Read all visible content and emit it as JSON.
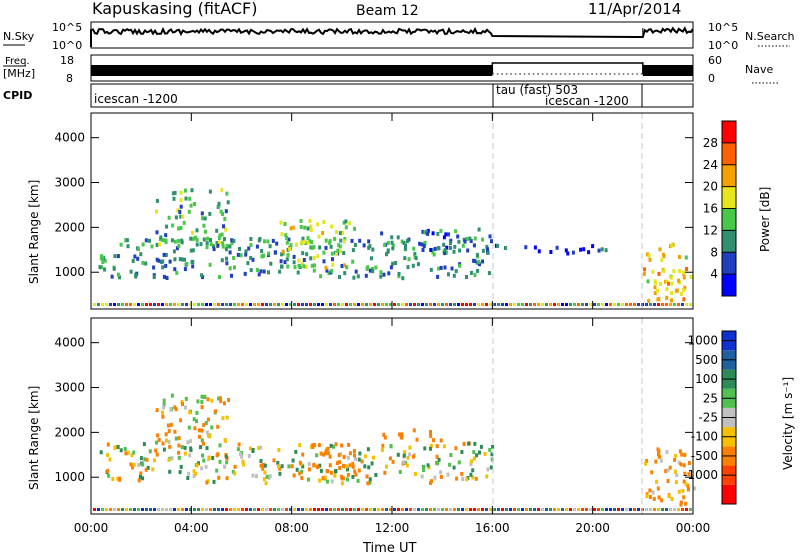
{
  "header": {
    "station": "Kapuskasing (fitACF)",
    "beam": "Beam 12",
    "date": "11/Apr/2014"
  },
  "nsky_panel": {
    "left_label": "N.Sky",
    "left_ticks": [
      "10^5",
      "10^0"
    ],
    "right_ticks": [
      "10^5",
      "10^0"
    ],
    "right_label": "N.Search"
  },
  "freq_panel": {
    "left_label_1": "Freq.",
    "left_label_2": "[MHz]",
    "left_ticks": [
      "18",
      "8"
    ],
    "right_ticks": [
      "60",
      "0"
    ],
    "right_label": "Nave"
  },
  "cpid_panel": {
    "label": "CPID",
    "segments": [
      {
        "text": "icescan -1200",
        "start": "00:00",
        "end": "16:00"
      },
      {
        "text": "tau (fast) 503",
        "start": "16:00",
        "end": "22:00"
      },
      {
        "text": "icescan -1200",
        "start": "16:00",
        "end": "22:00"
      }
    ]
  },
  "x_axis": {
    "ticks": [
      "00:00",
      "04:00",
      "08:00",
      "12:00",
      "16:00",
      "20:00",
      "00:00"
    ],
    "label": "Time UT"
  },
  "power_panel": {
    "ylabel": "Slant Range [km]",
    "yticks": [
      "1000",
      "2000",
      "3000",
      "4000"
    ],
    "colorbar_label": "Power [dB]",
    "colorbar_ticks": [
      "4",
      "8",
      "12",
      "16",
      "20",
      "24",
      "28"
    ],
    "colors": [
      "#0000ff",
      "#1f3fbf",
      "#2f8f6f",
      "#48c848",
      "#e6e61a",
      "#f5a000",
      "#ff6000",
      "#ff0000"
    ]
  },
  "velocity_panel": {
    "ylabel": "Slant Range [km]",
    "yticks": [
      "1000",
      "2000",
      "3000",
      "4000"
    ],
    "colorbar_label": "Velocity [m s⁻¹]",
    "colorbar_ticks": [
      "1000",
      "500",
      "100",
      "25",
      "-25",
      "-100",
      "-500",
      "-1000"
    ],
    "colors": [
      "#1030d0",
      "#2060a0",
      "#2e8b57",
      "#50c050",
      "#c0c0c0",
      "#f5c000",
      "#ff8000",
      "#ff4000",
      "#ff0000"
    ]
  },
  "chart_data": {
    "type": "heatmap",
    "x_range_hours": [
      0,
      24
    ],
    "y_range_km": [
      180,
      4550
    ],
    "mode_change_hours": [
      16,
      22
    ],
    "power_echo_bands": [
      {
        "t0": 0.3,
        "t1": 16,
        "r0": 900,
        "r1": 1800,
        "value_db": 10
      },
      {
        "t0": 2.5,
        "t1": 5.5,
        "r0": 1600,
        "r1": 2900,
        "value_db": 12
      },
      {
        "t0": 7.5,
        "t1": 10.5,
        "r0": 1100,
        "r1": 2200,
        "value_db": 16
      },
      {
        "t0": 11,
        "t1": 16,
        "r0": 1500,
        "r1": 2000,
        "value_db": 8
      },
      {
        "t0": 16,
        "t1": 20.5,
        "r0": 1450,
        "r1": 1650,
        "value_db": 4
      },
      {
        "t0": 22,
        "t1": 24,
        "r0": 400,
        "r1": 1700,
        "value_db": 20
      }
    ],
    "velocity_echo_bands": [
      {
        "t0": 0.3,
        "t1": 16,
        "r0": 900,
        "r1": 1800,
        "value_ms": 0
      },
      {
        "t0": 2.5,
        "t1": 5.5,
        "r0": 1700,
        "r1": 2900,
        "value_ms": -100
      },
      {
        "t0": 8,
        "t1": 10.5,
        "r0": 1000,
        "r1": 1800,
        "value_ms": -300
      },
      {
        "t0": 11.5,
        "t1": 14,
        "r0": 1850,
        "r1": 2100,
        "value_ms": -300
      },
      {
        "t0": 22,
        "t1": 24,
        "r0": 400,
        "r1": 1700,
        "value_ms": -200
      }
    ]
  }
}
